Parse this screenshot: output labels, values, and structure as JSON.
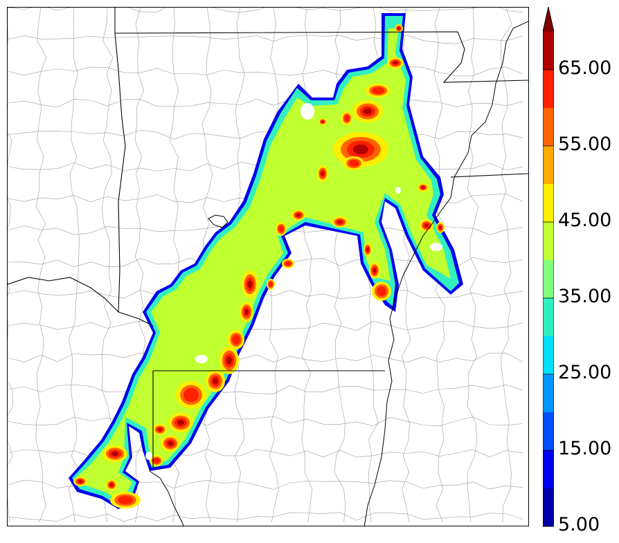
{
  "colorbar": {
    "labels": [
      "65.00",
      "55.00",
      "45.00",
      "35.00",
      "25.00",
      "15.00",
      "5.00"
    ],
    "label_values": [
      65,
      55,
      45,
      35,
      25,
      15,
      5
    ],
    "min": 5,
    "max": 70,
    "extend": "max",
    "bins": [
      {
        "from": 5,
        "to": 10,
        "color": "#0000a8"
      },
      {
        "from": 10,
        "to": 15,
        "color": "#0000f0"
      },
      {
        "from": 15,
        "to": 20,
        "color": "#0050ff"
      },
      {
        "from": 20,
        "to": 25,
        "color": "#0096ff"
      },
      {
        "from": 25,
        "to": 30,
        "color": "#00e0ff"
      },
      {
        "from": 30,
        "to": 35,
        "color": "#30f0c0"
      },
      {
        "from": 35,
        "to": 40,
        "color": "#80ff80"
      },
      {
        "from": 40,
        "to": 45,
        "color": "#c0ff30"
      },
      {
        "from": 45,
        "to": 50,
        "color": "#ffee00"
      },
      {
        "from": 50,
        "to": 55,
        "color": "#ffaa00"
      },
      {
        "from": 55,
        "to": 60,
        "color": "#ff6400"
      },
      {
        "from": 60,
        "to": 65,
        "color": "#ff2000"
      },
      {
        "from": 65,
        "to": 70,
        "color": "#b00000"
      }
    ],
    "extend_color": "#800000"
  },
  "map": {
    "field_colors": {
      "edge": "#0000f0",
      "outer": "#30f0c0",
      "base": "#c0ff30",
      "mid": "#ffee00",
      "high": "#ff6400",
      "peak": "#ff2000",
      "core": "#b00000"
    },
    "boundary_color": "#000000",
    "county_color": "#9a9a9a",
    "river_color": "#000000"
  }
}
